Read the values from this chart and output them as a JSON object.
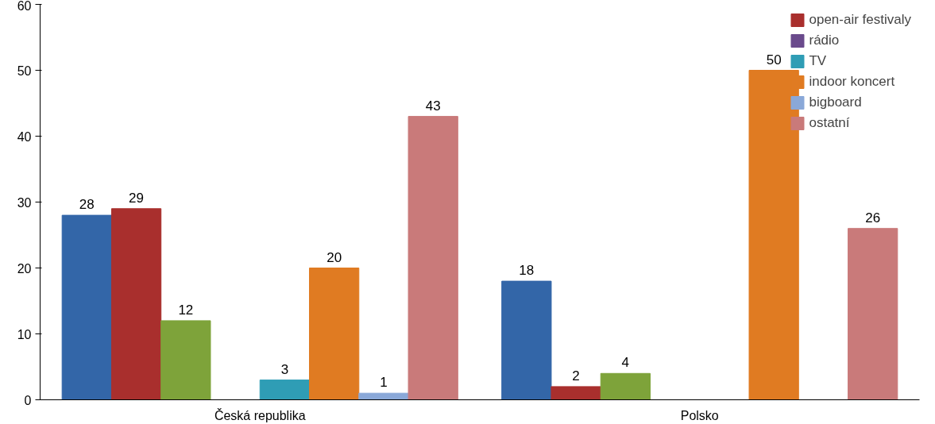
{
  "chart_data": {
    "type": "bar",
    "categories": [
      "Česká republika",
      "Polsko"
    ],
    "series": [
      {
        "color": "#3366a8",
        "values": [
          28,
          18
        ]
      },
      {
        "name": "open-air festivaly",
        "color": "#a92f2d",
        "values": [
          29,
          2
        ]
      },
      {
        "color": "#7ea33a",
        "values": [
          12,
          4
        ]
      },
      {
        "name": "rádio",
        "color": "#6a4a8c",
        "values": [
          null,
          null
        ]
      },
      {
        "name": "TV",
        "color": "#2f9db5",
        "values": [
          3,
          null
        ]
      },
      {
        "name": "indoor koncert",
        "color": "#e07b22",
        "values": [
          20,
          50
        ]
      },
      {
        "name": "bigboard",
        "color": "#8aa8d8",
        "values": [
          1,
          null
        ]
      },
      {
        "name": "ostatní",
        "color": "#c97a7a",
        "values": [
          43,
          26
        ]
      }
    ],
    "ylim": [
      0,
      60
    ],
    "yticks": [
      0,
      10,
      20,
      30,
      40,
      50,
      60
    ],
    "grid": false,
    "legend": "top right",
    "data_labels": true
  }
}
